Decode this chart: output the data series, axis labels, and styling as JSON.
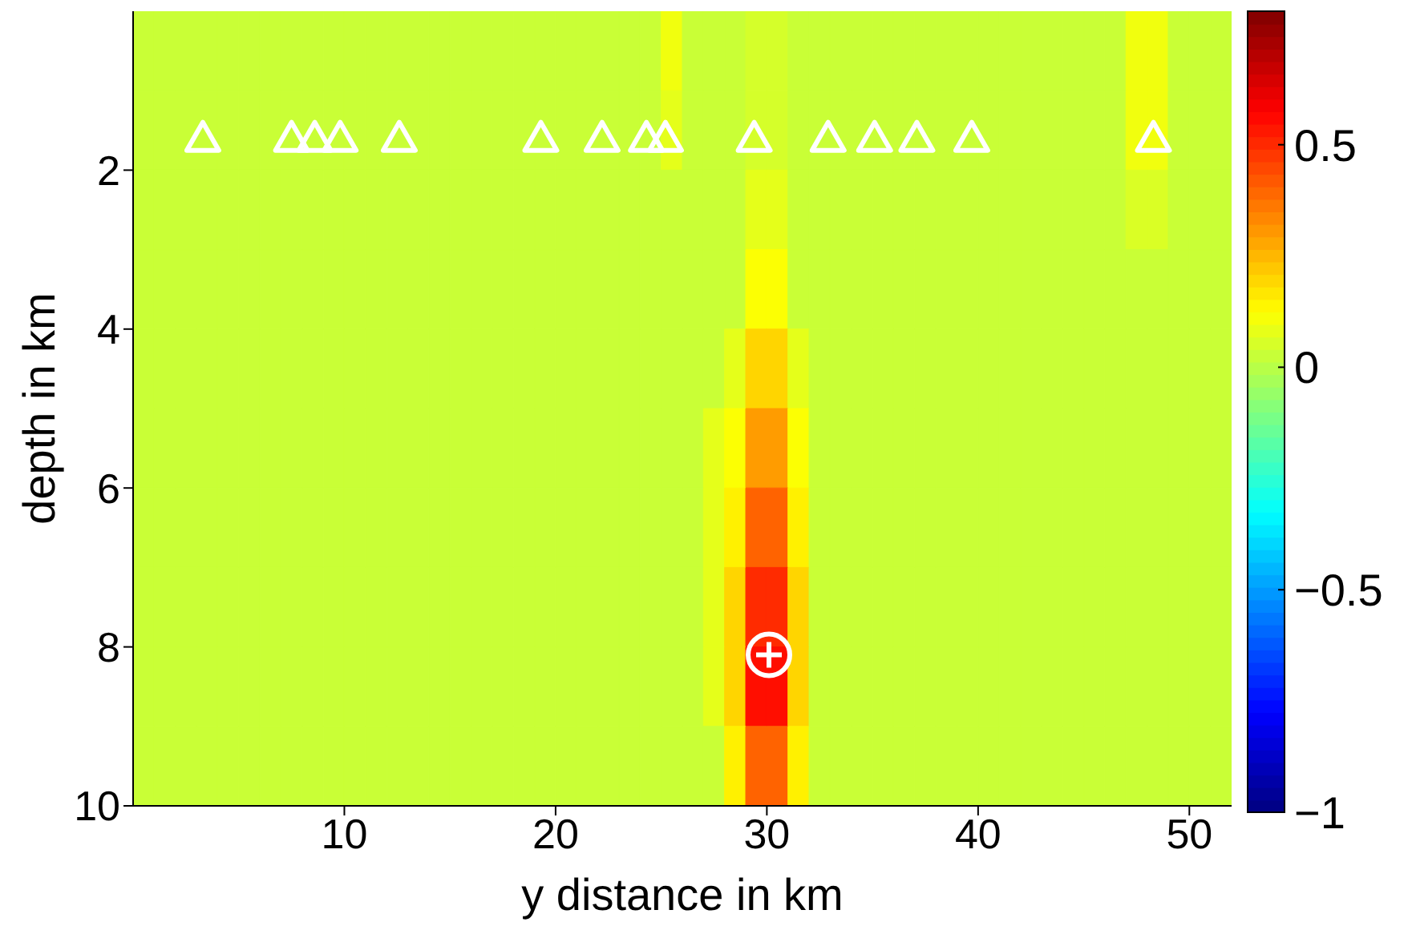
{
  "chart_data": {
    "type": "heatmap",
    "xlabel": "y distance in km",
    "ylabel": "depth in km",
    "xlim": [
      0,
      52
    ],
    "xticks": [
      10,
      20,
      30,
      40,
      50
    ],
    "ylim": [
      10,
      0
    ],
    "yticks": [
      2,
      4,
      6,
      8,
      10
    ],
    "clim": [
      -1,
      0.8
    ],
    "cticks": [
      -1,
      -0.5,
      0,
      0.5
    ],
    "x": [
      0.5,
      1.5,
      2.5,
      3.5,
      4.5,
      5.5,
      6.5,
      7.5,
      8.5,
      9.5,
      10.5,
      11.5,
      12.5,
      13.5,
      14.5,
      15.5,
      16.5,
      17.5,
      18.5,
      19.5,
      20.5,
      21.5,
      22.5,
      23.5,
      24.5,
      25.5,
      26.5,
      27.5,
      28.5,
      29.5,
      30.5,
      31.5,
      32.5,
      33.5,
      34.5,
      35.5,
      36.5,
      37.5,
      38.5,
      39.5,
      40.5,
      41.5,
      42.5,
      43.5,
      44.5,
      45.5,
      46.5,
      47.5,
      48.5,
      49.5,
      50.5,
      51.5
    ],
    "y": [
      0.5,
      1.5,
      2.5,
      3.5,
      4.5,
      5.5,
      6.5,
      7.5,
      8.5,
      9.5
    ],
    "cells": [
      [
        0.03,
        0.03,
        0.03,
        0.03,
        0.03,
        0.03,
        0.03,
        0.03,
        0.03,
        0.03,
        0.03,
        0.03,
        0.03,
        0.03,
        0.03,
        0.03,
        0.03,
        0.03,
        0.03,
        0.03,
        0.03,
        0.03,
        0.03,
        0.03,
        0.03,
        0.1,
        0.03,
        0.03,
        0.03,
        0.05,
        0.05,
        0.03,
        0.03,
        0.03,
        0.03,
        0.03,
        0.03,
        0.03,
        0.03,
        0.03,
        0.03,
        0.03,
        0.03,
        0.03,
        0.03,
        0.03,
        0.03,
        0.1,
        0.1,
        0.03,
        0.03,
        0.03
      ],
      [
        0.03,
        0.03,
        0.03,
        0.03,
        0.03,
        0.03,
        0.03,
        0.03,
        0.03,
        0.03,
        0.03,
        0.03,
        0.03,
        0.03,
        0.03,
        0.03,
        0.03,
        0.03,
        0.03,
        0.03,
        0.03,
        0.03,
        0.03,
        0.03,
        0.03,
        0.08,
        0.03,
        0.03,
        0.03,
        0.05,
        0.05,
        0.03,
        0.03,
        0.03,
        0.03,
        0.03,
        0.03,
        0.03,
        0.03,
        0.03,
        0.03,
        0.03,
        0.03,
        0.03,
        0.03,
        0.03,
        0.03,
        0.1,
        0.1,
        0.03,
        0.03,
        0.03
      ],
      [
        0.03,
        0.03,
        0.03,
        0.03,
        0.03,
        0.03,
        0.03,
        0.03,
        0.03,
        0.03,
        0.03,
        0.03,
        0.03,
        0.03,
        0.03,
        0.03,
        0.03,
        0.03,
        0.03,
        0.03,
        0.03,
        0.03,
        0.03,
        0.03,
        0.03,
        0.03,
        0.03,
        0.03,
        0.03,
        0.08,
        0.08,
        0.03,
        0.03,
        0.03,
        0.03,
        0.03,
        0.03,
        0.03,
        0.03,
        0.03,
        0.03,
        0.03,
        0.03,
        0.03,
        0.03,
        0.03,
        0.03,
        0.06,
        0.06,
        0.03,
        0.03,
        0.03
      ],
      [
        0.03,
        0.03,
        0.03,
        0.03,
        0.03,
        0.03,
        0.03,
        0.03,
        0.03,
        0.03,
        0.03,
        0.03,
        0.03,
        0.03,
        0.03,
        0.03,
        0.03,
        0.03,
        0.03,
        0.03,
        0.03,
        0.03,
        0.03,
        0.03,
        0.03,
        0.03,
        0.03,
        0.03,
        0.03,
        0.12,
        0.12,
        0.03,
        0.03,
        0.03,
        0.03,
        0.03,
        0.03,
        0.03,
        0.03,
        0.03,
        0.03,
        0.03,
        0.03,
        0.03,
        0.03,
        0.03,
        0.03,
        0.03,
        0.03,
        0.03,
        0.03,
        0.03
      ],
      [
        0.03,
        0.03,
        0.03,
        0.03,
        0.03,
        0.03,
        0.03,
        0.03,
        0.03,
        0.03,
        0.03,
        0.03,
        0.03,
        0.03,
        0.03,
        0.03,
        0.03,
        0.03,
        0.03,
        0.03,
        0.03,
        0.03,
        0.03,
        0.03,
        0.03,
        0.03,
        0.03,
        0.03,
        0.08,
        0.2,
        0.2,
        0.08,
        0.03,
        0.03,
        0.03,
        0.03,
        0.03,
        0.03,
        0.03,
        0.03,
        0.03,
        0.03,
        0.03,
        0.03,
        0.03,
        0.03,
        0.03,
        0.03,
        0.03,
        0.03,
        0.03,
        0.03
      ],
      [
        0.03,
        0.03,
        0.03,
        0.03,
        0.03,
        0.03,
        0.03,
        0.03,
        0.03,
        0.03,
        0.03,
        0.03,
        0.03,
        0.03,
        0.03,
        0.03,
        0.03,
        0.03,
        0.03,
        0.03,
        0.03,
        0.03,
        0.03,
        0.03,
        0.03,
        0.03,
        0.03,
        0.08,
        0.12,
        0.3,
        0.3,
        0.12,
        0.03,
        0.03,
        0.03,
        0.03,
        0.03,
        0.03,
        0.03,
        0.03,
        0.03,
        0.03,
        0.03,
        0.03,
        0.03,
        0.03,
        0.03,
        0.03,
        0.03,
        0.03,
        0.03,
        0.03
      ],
      [
        0.03,
        0.03,
        0.03,
        0.03,
        0.03,
        0.03,
        0.03,
        0.03,
        0.03,
        0.03,
        0.03,
        0.03,
        0.03,
        0.03,
        0.03,
        0.03,
        0.03,
        0.03,
        0.03,
        0.03,
        0.03,
        0.03,
        0.03,
        0.03,
        0.03,
        0.03,
        0.03,
        0.08,
        0.15,
        0.4,
        0.4,
        0.15,
        0.03,
        0.03,
        0.03,
        0.03,
        0.03,
        0.03,
        0.03,
        0.03,
        0.03,
        0.03,
        0.03,
        0.03,
        0.03,
        0.03,
        0.03,
        0.03,
        0.03,
        0.03,
        0.03,
        0.03
      ],
      [
        0.03,
        0.03,
        0.03,
        0.03,
        0.03,
        0.03,
        0.03,
        0.03,
        0.03,
        0.03,
        0.03,
        0.03,
        0.03,
        0.03,
        0.03,
        0.03,
        0.03,
        0.03,
        0.03,
        0.03,
        0.03,
        0.03,
        0.03,
        0.03,
        0.03,
        0.03,
        0.03,
        0.08,
        0.2,
        0.5,
        0.5,
        0.2,
        0.03,
        0.03,
        0.03,
        0.03,
        0.03,
        0.03,
        0.03,
        0.03,
        0.03,
        0.03,
        0.03,
        0.03,
        0.03,
        0.03,
        0.03,
        0.03,
        0.03,
        0.03,
        0.03,
        0.03
      ],
      [
        0.03,
        0.03,
        0.03,
        0.03,
        0.03,
        0.03,
        0.03,
        0.03,
        0.03,
        0.03,
        0.03,
        0.03,
        0.03,
        0.03,
        0.03,
        0.03,
        0.03,
        0.03,
        0.03,
        0.03,
        0.03,
        0.03,
        0.03,
        0.03,
        0.03,
        0.03,
        0.03,
        0.08,
        0.2,
        0.55,
        0.55,
        0.2,
        0.03,
        0.03,
        0.03,
        0.03,
        0.03,
        0.03,
        0.03,
        0.03,
        0.03,
        0.03,
        0.03,
        0.03,
        0.03,
        0.03,
        0.03,
        0.03,
        0.03,
        0.03,
        0.03,
        0.03
      ],
      [
        0.03,
        0.03,
        0.03,
        0.03,
        0.03,
        0.03,
        0.03,
        0.03,
        0.03,
        0.03,
        0.03,
        0.03,
        0.03,
        0.03,
        0.03,
        0.03,
        0.03,
        0.03,
        0.03,
        0.03,
        0.03,
        0.03,
        0.03,
        0.03,
        0.03,
        0.03,
        0.03,
        0.03,
        0.15,
        0.4,
        0.4,
        0.15,
        0.03,
        0.03,
        0.03,
        0.03,
        0.03,
        0.03,
        0.03,
        0.03,
        0.03,
        0.03,
        0.03,
        0.03,
        0.03,
        0.03,
        0.03,
        0.03,
        0.03,
        0.03,
        0.03,
        0.03
      ]
    ],
    "series": [
      {
        "type": "scatter",
        "marker": "triangle",
        "color": "#ffffff",
        "x": [
          3.3,
          7.5,
          8.6,
          9.8,
          12.6,
          19.3,
          22.2,
          24.3,
          25.2,
          29.4,
          32.9,
          35.1,
          37.1,
          39.7,
          48.3
        ],
        "values": [
          1.6,
          1.6,
          1.6,
          1.6,
          1.6,
          1.6,
          1.6,
          1.6,
          1.6,
          1.6,
          1.6,
          1.6,
          1.6,
          1.6,
          1.6
        ]
      },
      {
        "type": "scatter",
        "marker": "circle",
        "color": "#ffffff",
        "x": [
          30.1
        ],
        "values": [
          8.1
        ]
      }
    ]
  }
}
